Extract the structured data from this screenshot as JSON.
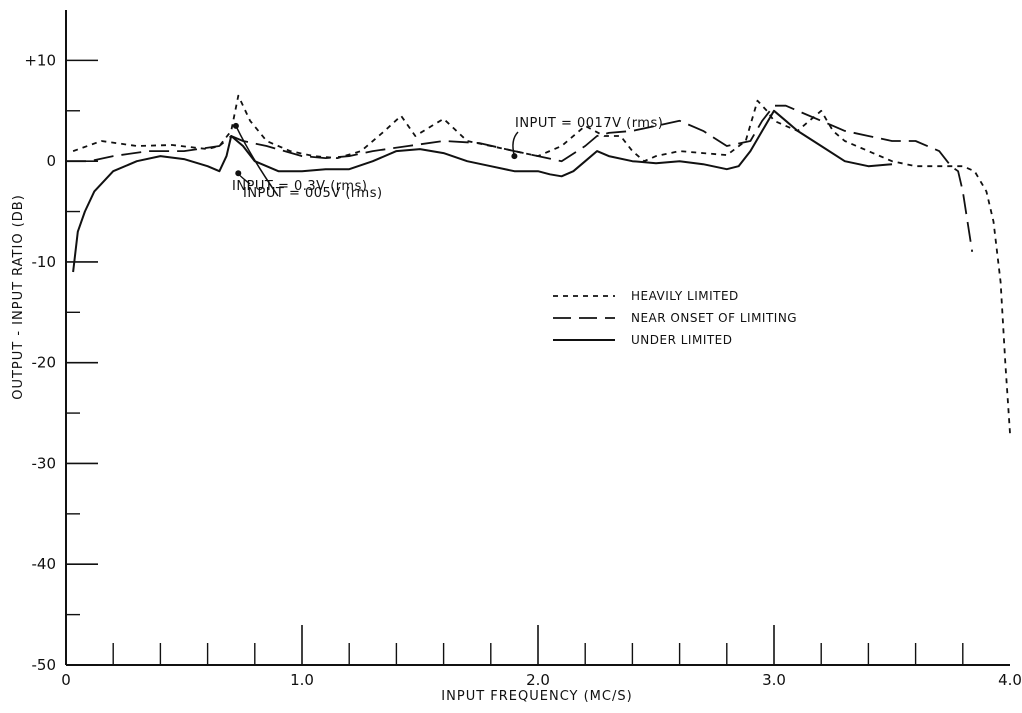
{
  "chart_data": {
    "type": "line",
    "title": "",
    "xlabel": "INPUT FREQUENCY (MC/S)",
    "ylabel": "OUTPUT - INPUT RATIO (DB)",
    "xlim": [
      0,
      4.0
    ],
    "ylim": [
      -50,
      15
    ],
    "grid": false,
    "legend_position": "center-right",
    "x_ticks": [
      {
        "value": 0,
        "label": "0"
      },
      {
        "value": 1.0,
        "label": "1.0"
      },
      {
        "value": 2.0,
        "label": "2.0"
      },
      {
        "value": 3.0,
        "label": "3.0"
      },
      {
        "value": 4.0,
        "label": "4.0"
      }
    ],
    "y_ticks": [
      {
        "value": 10,
        "label": "+10"
      },
      {
        "value": 0,
        "label": "0"
      },
      {
        "value": -10,
        "label": "-10"
      },
      {
        "value": -20,
        "label": "-20"
      },
      {
        "value": -30,
        "label": "-30"
      },
      {
        "value": -40,
        "label": "-40"
      },
      {
        "value": -50,
        "label": "-50"
      }
    ],
    "series": [
      {
        "name": "HEAVILY LIMITED",
        "style": "dotted",
        "x": [
          0.03,
          0.15,
          0.3,
          0.45,
          0.6,
          0.65,
          0.7,
          0.73,
          0.78,
          0.85,
          0.95,
          1.05,
          1.15,
          1.25,
          1.35,
          1.42,
          1.48,
          1.55,
          1.6,
          1.7,
          1.8,
          1.9,
          2.0,
          2.1,
          2.2,
          2.28,
          2.35,
          2.4,
          2.45,
          2.5,
          2.6,
          2.7,
          2.8,
          2.88,
          2.93,
          2.97,
          3.0,
          3.05,
          3.1,
          3.15,
          3.2,
          3.25,
          3.3,
          3.4,
          3.5,
          3.6,
          3.7,
          3.8,
          3.85,
          3.9,
          3.93,
          3.96,
          3.98,
          4.0
        ],
        "values": [
          1.0,
          2.0,
          1.5,
          1.6,
          1.2,
          1.5,
          3.0,
          6.5,
          4.0,
          2.0,
          1.0,
          0.5,
          0.3,
          1.0,
          3.0,
          4.5,
          2.5,
          3.5,
          4.2,
          2.0,
          1.5,
          1.0,
          0.5,
          1.5,
          3.5,
          2.5,
          2.5,
          1.0,
          0.0,
          0.5,
          1.0,
          0.8,
          0.6,
          2.0,
          6.0,
          5.0,
          4.0,
          3.5,
          3.0,
          4.0,
          5.0,
          3.0,
          2.0,
          1.0,
          0.0,
          -0.5,
          -0.5,
          -0.5,
          -1.0,
          -3.0,
          -6.0,
          -12.0,
          -20.0,
          -27.0
        ]
      },
      {
        "name": "NEAR ONSET OF LIMITING",
        "style": "dashed",
        "x": [
          0.0,
          0.1,
          0.2,
          0.35,
          0.5,
          0.65,
          0.7,
          0.75,
          0.85,
          1.0,
          1.1,
          1.2,
          1.3,
          1.45,
          1.6,
          1.75,
          1.9,
          2.0,
          2.1,
          2.2,
          2.25,
          2.3,
          2.4,
          2.5,
          2.6,
          2.7,
          2.8,
          2.9,
          2.95,
          3.0,
          3.05,
          3.1,
          3.2,
          3.3,
          3.4,
          3.5,
          3.6,
          3.7,
          3.75,
          3.78,
          3.8,
          3.82,
          3.84
        ],
        "values": [
          0.0,
          0.0,
          0.5,
          1.0,
          1.0,
          1.5,
          2.5,
          2.0,
          1.5,
          0.5,
          0.3,
          0.5,
          1.0,
          1.5,
          2.0,
          1.8,
          1.0,
          0.5,
          0.0,
          1.5,
          2.5,
          2.8,
          3.0,
          3.5,
          4.0,
          3.0,
          1.5,
          2.0,
          4.0,
          5.5,
          5.5,
          5.0,
          4.0,
          3.0,
          2.5,
          2.0,
          2.0,
          1.0,
          -0.5,
          -1.0,
          -3.0,
          -6.0,
          -9.0
        ]
      },
      {
        "name": "UNDER LIMITED",
        "style": "solid",
        "x": [
          0.03,
          0.05,
          0.08,
          0.12,
          0.2,
          0.3,
          0.4,
          0.5,
          0.6,
          0.65,
          0.68,
          0.7,
          0.75,
          0.8,
          0.9,
          1.0,
          1.1,
          1.2,
          1.3,
          1.4,
          1.5,
          1.6,
          1.7,
          1.8,
          1.9,
          2.0,
          2.05,
          2.1,
          2.15,
          2.2,
          2.25,
          2.3,
          2.4,
          2.5,
          2.6,
          2.7,
          2.8,
          2.85,
          2.9,
          2.95,
          3.0,
          3.05,
          3.1,
          3.2,
          3.3,
          3.4,
          3.5
        ],
        "values": [
          -11.0,
          -7.0,
          -5.0,
          -3.0,
          -1.0,
          0.0,
          0.5,
          0.2,
          -0.5,
          -1.0,
          0.5,
          2.5,
          1.5,
          0.0,
          -1.0,
          -1.0,
          -0.8,
          -0.8,
          0.0,
          1.0,
          1.2,
          0.8,
          0.0,
          -0.5,
          -1.0,
          -1.0,
          -1.3,
          -1.5,
          -1.0,
          0.0,
          1.0,
          0.5,
          0.0,
          -0.2,
          0.0,
          -0.3,
          -0.8,
          -0.5,
          1.0,
          3.0,
          5.0,
          4.0,
          3.0,
          1.5,
          0.0,
          -0.5,
          -0.3
        ]
      }
    ],
    "legend": [
      {
        "label": "HEAVILY LIMITED",
        "style": "dotted"
      },
      {
        "label": "NEAR ONSET OF LIMITING",
        "style": "dashed"
      },
      {
        "label": "UNDER LIMITED",
        "style": "solid"
      }
    ],
    "annotations": [
      {
        "text": "INPUT = 0.3V (rms)",
        "target_x": 0.72,
        "target_y": 3.5
      },
      {
        "text": "INPUT = 0017V (rms)",
        "target_x": 1.9,
        "target_y": 0.5
      },
      {
        "text": "INPUT = 005V (rms)",
        "target_x": 0.73,
        "target_y": -1.2
      }
    ]
  }
}
